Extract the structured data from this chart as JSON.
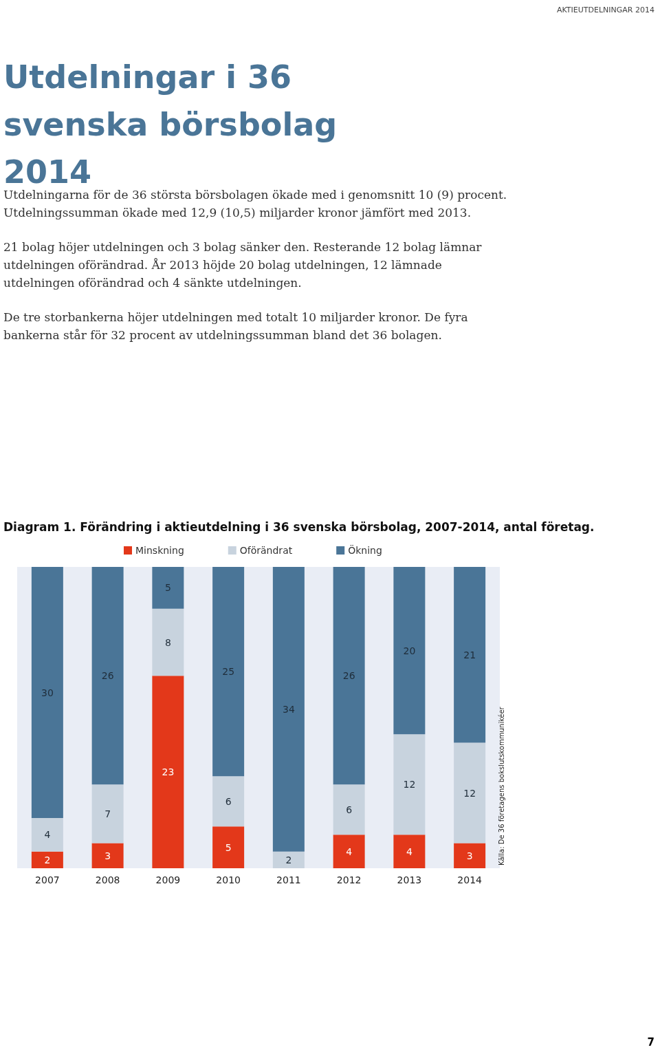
{
  "chart_data": {
    "type": "bar",
    "title": "Utdelningar i 36 svenska börsbolag 2014",
    "subtitle": "Diagram 1. Förändring i aktieutdelning i 36 svenska börsbolag, 2007-2014, antal företag.",
    "categories": [
      "2007",
      "2008",
      "2009",
      "2010",
      "2011",
      "2012",
      "2013",
      "2014"
    ],
    "series": [
      {
        "name": "Minskning",
        "color": "#e3381a",
        "values": [
          2,
          3,
          23,
          5,
          null,
          4,
          4,
          3
        ]
      },
      {
        "name": "Oförändrat",
        "color": "#c8d3de",
        "values": [
          4,
          7,
          8,
          6,
          2,
          6,
          12,
          12
        ]
      },
      {
        "name": "Ökning",
        "color": "#4a7597",
        "values": [
          30,
          26,
          5,
          25,
          34,
          26,
          20,
          21
        ]
      }
    ],
    "stacked": true,
    "data_labels": true,
    "ylim": [
      0,
      36
    ],
    "tick_labels": "x",
    "grid": false,
    "legend": "top",
    "annotations": [
      "AKTIEUTDELNINGAR 2014",
      "Utdelningarna för de 36 största börsbolagen ökade med i genomsnitt 10 (9) procent. Utdelningssumman ökade med 12,9 (10,5) miljarder kronor jämfört med 2013.",
      "21 bolag höjer utdelningen och 3 bolag sänker den. Resterande 12 bolag lämnar utdelningen oförändrad. År 2013 höjde 20 bolag utdelningen, 12 lämnade utdelningen oförändrad och 4 sänkte utdelningen.",
      "De tre storbankerna höjer utdelningen med totalt 10 miljarder kronor. De fyra bankerna står för 32 procent av utdelningssumman bland det 36 bolagen.",
      "Källa: De 36 företagens bokslutskommunikéer",
      "7"
    ]
  }
}
